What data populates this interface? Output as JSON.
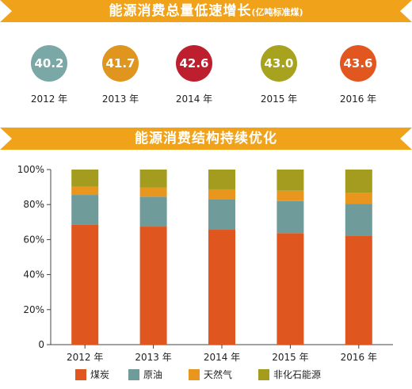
{
  "banner_top": {
    "title": "能源消费总量低速增长",
    "unit": "(亿吨标准煤)"
  },
  "banner_mid": {
    "title": "能源消费结构持续优化"
  },
  "totals": [
    {
      "year": "2012 年",
      "value": "40.2",
      "color": "#7aa8a6"
    },
    {
      "year": "2013 年",
      "value": "41.7",
      "color": "#e0951e"
    },
    {
      "year": "2014 年",
      "value": "42.6",
      "color": "#be1f2e"
    },
    {
      "year": "2015 年",
      "value": "43.0",
      "color": "#a8a31e"
    },
    {
      "year": "2016 年",
      "value": "43.6",
      "color": "#e2571f"
    }
  ],
  "colors": {
    "banner": "#f0a21a"
  },
  "chart_data": {
    "type": "bar",
    "stacked": true,
    "categories": [
      "2012 年",
      "2013 年",
      "2014 年",
      "2015 年",
      "2016 年"
    ],
    "series": [
      {
        "name": "煤炭",
        "color": "#e0561f",
        "values": [
          68.5,
          67.4,
          65.6,
          63.7,
          62.0
        ]
      },
      {
        "name": "原油",
        "color": "#6f9b9a",
        "values": [
          17.0,
          17.1,
          17.4,
          18.3,
          18.3
        ]
      },
      {
        "name": "天然气",
        "color": "#e8961e",
        "values": [
          4.8,
          5.3,
          5.7,
          5.9,
          6.4
        ]
      },
      {
        "name": "非化石能源",
        "color": "#a39c1e",
        "values": [
          9.7,
          10.2,
          11.3,
          12.1,
          13.3
        ]
      }
    ],
    "yticks": [
      "0",
      "20%",
      "40%",
      "60%",
      "80%",
      "100%"
    ],
    "ylim": [
      0,
      100
    ],
    "grid": false,
    "legend": "bottom"
  }
}
